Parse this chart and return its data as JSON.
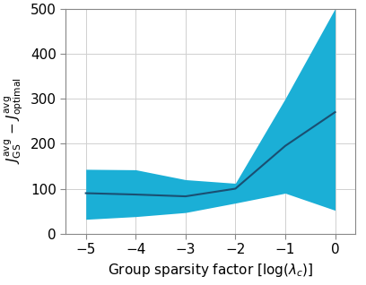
{
  "x": [
    -5,
    -4,
    -3,
    -2,
    -1,
    0
  ],
  "mean": [
    90,
    87,
    83,
    100,
    195,
    270
  ],
  "upper": [
    143,
    142,
    120,
    112,
    300,
    500
  ],
  "lower": [
    32,
    38,
    47,
    68,
    90,
    52
  ],
  "fill_color": "#1bafd6",
  "line_color": "#1a4f72",
  "background_color": "#ffffff",
  "xlabel": "Group sparsity factor [log($\\lambda_c$)]",
  "xlim": [
    -5.4,
    0.4
  ],
  "ylim": [
    0,
    500
  ],
  "xticks": [
    -5,
    -4,
    -3,
    -2,
    -1,
    0
  ],
  "yticks": [
    0,
    100,
    200,
    300,
    400,
    500
  ],
  "grid_color": "#d0d0d0",
  "tick_fontsize": 11,
  "label_fontsize": 11
}
